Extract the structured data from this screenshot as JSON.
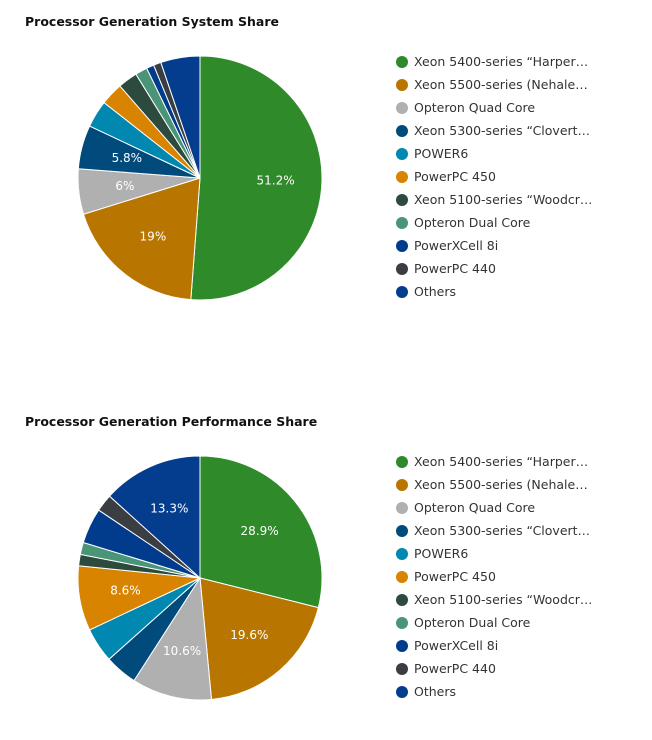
{
  "chart_data": [
    {
      "type": "pie",
      "title": "Processor Generation System Share",
      "labels": [
        "Xeon 5400-series “Harper…",
        "Xeon 5500-series (Nehale…",
        "Opteron Quad Core",
        "Xeon 5300-series “Clovert…",
        "POWER6",
        "PowerPC 450",
        "Xeon 5100-series “Woodcr…",
        "Opteron Dual Core",
        "PowerXCell 8i",
        "PowerPC 440",
        "Others"
      ],
      "values": [
        51.2,
        19.0,
        6.0,
        5.8,
        3.6,
        3.0,
        2.6,
        1.6,
        1.0,
        1.0,
        5.2
      ],
      "data_labels": [
        "51.2%",
        "19%",
        "6%",
        "5.8%",
        "",
        "",
        "",
        "",
        "",
        "",
        ""
      ],
      "colors": [
        "#2f8a2a",
        "#b87500",
        "#b0b0b0",
        "#004a7c",
        "#0088b0",
        "#d88400",
        "#2c4a3e",
        "#4a9478",
        "#003b8c",
        "#3a3d42",
        "#053d8e"
      ],
      "legend_position": "right"
    },
    {
      "type": "pie",
      "title": "Processor Generation Performance Share",
      "labels": [
        "Xeon 5400-series “Harper…",
        "Xeon 5500-series (Nehale…",
        "Opteron Quad Core",
        "Xeon 5300-series “Clovert…",
        "POWER6",
        "PowerPC 450",
        "Xeon 5100-series “Woodcr…",
        "Opteron Dual Core",
        "PowerXCell 8i",
        "PowerPC 440",
        "Others"
      ],
      "values": [
        28.9,
        19.6,
        10.6,
        4.3,
        4.6,
        8.6,
        1.5,
        1.6,
        4.7,
        2.3,
        13.3
      ],
      "data_labels": [
        "28.9%",
        "19.6%",
        "10.6%",
        "",
        "",
        "8.6%",
        "",
        "",
        "",
        "",
        "13.3%"
      ],
      "colors": [
        "#2f8a2a",
        "#b87500",
        "#b0b0b0",
        "#004a7c",
        "#0088b0",
        "#d88400",
        "#2c4a3e",
        "#4a9478",
        "#003b8c",
        "#3a3d42",
        "#053d8e"
      ],
      "legend_position": "right"
    }
  ]
}
